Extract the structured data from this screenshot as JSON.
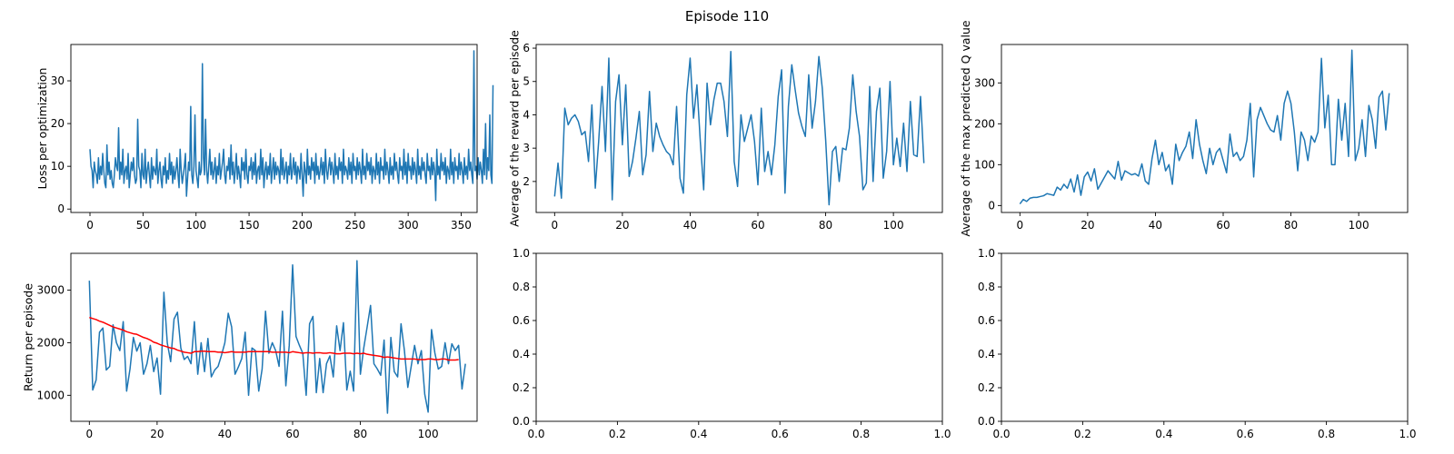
{
  "figure": {
    "suptitle": "Episode 110"
  },
  "colors": {
    "series": "#1f77b4",
    "moving_average": "#ff0000",
    "axes": "#000000",
    "background": "#ffffff"
  },
  "chart_data": [
    {
      "id": "loss",
      "type": "line",
      "title": "",
      "xlabel": "",
      "ylabel": "Loss per optimization",
      "xlim": [
        -18,
        365
      ],
      "ylim": [
        -0.8,
        38.5
      ],
      "xticks": [
        0,
        50,
        100,
        150,
        200,
        250,
        300,
        350
      ],
      "yticks": [
        0,
        10,
        20,
        30
      ],
      "grid": false,
      "series": [
        {
          "color": "#1f77b4",
          "x_start": 0,
          "x_step": 1,
          "values": [
            14,
            10,
            9,
            5,
            11,
            9,
            8,
            6,
            12,
            7,
            10,
            8,
            13,
            9,
            6,
            5,
            15,
            8,
            11,
            7,
            9,
            6,
            5,
            8,
            12,
            10,
            9,
            19,
            7,
            11,
            8,
            14,
            6,
            9,
            10,
            7,
            13,
            5,
            8,
            11,
            9,
            12,
            8,
            6,
            7,
            21,
            10,
            9,
            5,
            13,
            8,
            7,
            14,
            6,
            9,
            11,
            8,
            5,
            12,
            7,
            10,
            9,
            8,
            14,
            6,
            9,
            11,
            7,
            5,
            10,
            8,
            12,
            6,
            9,
            7,
            13,
            8,
            11,
            6,
            10,
            7,
            9,
            12,
            8,
            5,
            14,
            9,
            6,
            8,
            10,
            13,
            3,
            7,
            11,
            9,
            24,
            8,
            6,
            10,
            22,
            9,
            7,
            5,
            11,
            8,
            9,
            34,
            12,
            8,
            21,
            9,
            6,
            10,
            14,
            8,
            11,
            7,
            9,
            12,
            6,
            10,
            8,
            13,
            7,
            9,
            11,
            14,
            8,
            6,
            10,
            9,
            12,
            7,
            15,
            8,
            11,
            6,
            9,
            13,
            7,
            10,
            8,
            5,
            12,
            9,
            11,
            7,
            14,
            8,
            6,
            10,
            9,
            12,
            7,
            11,
            8,
            13,
            6,
            9,
            10,
            7,
            14,
            8,
            12,
            5,
            9,
            11,
            7,
            10,
            8,
            13,
            6,
            9,
            12,
            7,
            11,
            8,
            10,
            9,
            6,
            14,
            8,
            12,
            7,
            9,
            11,
            6,
            10,
            8,
            13,
            7,
            9,
            12,
            8,
            11,
            6,
            10,
            9,
            7,
            13,
            8,
            3,
            11,
            9,
            6,
            14,
            8,
            10,
            7,
            12,
            9,
            11,
            6,
            13,
            8,
            10,
            7,
            9,
            12,
            8,
            11,
            6,
            14,
            9,
            7,
            10,
            12,
            8,
            11,
            9,
            6,
            13,
            8,
            10,
            7,
            12,
            9,
            11,
            6,
            14,
            8,
            10,
            9,
            7,
            12,
            8,
            11,
            6,
            13,
            9,
            10,
            7,
            12,
            8,
            11,
            9,
            6,
            14,
            8,
            10,
            7,
            13,
            9,
            11,
            8,
            12,
            6,
            10,
            9,
            7,
            13,
            8,
            11,
            6,
            12,
            9,
            10,
            7,
            14,
            8,
            11,
            9,
            6,
            12,
            8,
            10,
            7,
            13,
            9,
            11,
            8,
            6,
            12,
            9,
            10,
            7,
            14,
            8,
            11,
            6,
            13,
            9,
            10,
            7,
            12,
            8,
            11,
            9,
            6,
            14,
            8,
            10,
            7,
            12,
            9,
            11,
            8,
            6,
            13,
            9,
            10,
            7,
            12,
            8,
            11,
            9,
            2,
            14,
            8,
            10,
            7,
            13,
            9,
            11,
            8,
            12,
            6,
            10,
            9,
            7,
            14,
            8,
            11,
            6,
            12,
            9,
            10,
            7,
            13,
            8,
            11,
            9,
            6,
            12,
            8,
            10,
            7,
            14,
            9,
            11,
            8,
            6,
            37,
            9,
            10,
            7,
            12,
            8,
            11,
            9,
            6,
            14,
            8,
            20,
            7,
            12,
            9,
            22,
            8,
            6,
            29
          ]
        }
      ]
    },
    {
      "id": "avg-reward",
      "type": "line",
      "title": "",
      "xlabel": "",
      "ylabel": "Average of the reward per episode",
      "xlim": [
        -5.45,
        114.45
      ],
      "ylim": [
        1.07,
        6.11
      ],
      "xticks": [
        0,
        20,
        40,
        60,
        80,
        100
      ],
      "yticks": [
        2,
        3,
        4,
        5,
        6
      ],
      "grid": false,
      "series": [
        {
          "color": "#1f77b4",
          "x_start": 0,
          "x_step": 1,
          "values": [
            1.55,
            2.55,
            1.5,
            4.2,
            3.7,
            3.9,
            4.0,
            3.8,
            3.4,
            3.5,
            2.6,
            4.3,
            1.8,
            3.2,
            4.85,
            2.9,
            5.7,
            1.45,
            4.4,
            5.2,
            3.1,
            4.9,
            2.15,
            2.6,
            3.3,
            4.1,
            2.2,
            2.8,
            4.7,
            2.9,
            3.75,
            3.35,
            3.1,
            2.9,
            2.8,
            2.5,
            4.25,
            2.1,
            1.65,
            4.6,
            5.7,
            3.9,
            4.9,
            3.2,
            1.75,
            4.95,
            3.7,
            4.45,
            4.95,
            4.95,
            4.4,
            3.35,
            5.9,
            2.6,
            1.85,
            4.0,
            3.2,
            3.6,
            4.0,
            3.2,
            1.9,
            4.2,
            2.3,
            2.9,
            2.2,
            3.1,
            4.55,
            5.35,
            1.65,
            4.25,
            5.5,
            4.75,
            4.05,
            3.65,
            3.35,
            5.2,
            3.6,
            4.4,
            5.75,
            4.8,
            3.25,
            1.3,
            2.9,
            3.05,
            2.0,
            3.0,
            2.95,
            3.6,
            5.2,
            4.1,
            3.35,
            1.75,
            1.95,
            4.85,
            2.0,
            4.1,
            4.8,
            2.1,
            2.9,
            5.0,
            2.5,
            3.3,
            2.45,
            3.75,
            2.3,
            4.4,
            2.8,
            2.75,
            4.55,
            2.55
          ]
        }
      ]
    },
    {
      "id": "max-q",
      "type": "line",
      "title": "",
      "xlabel": "",
      "ylabel": "Average of the max predicted Q value",
      "xlim": [
        -5.45,
        114.45
      ],
      "ylim": [
        -17,
        394
      ],
      "xticks": [
        0,
        20,
        40,
        60,
        80,
        100
      ],
      "yticks": [
        0,
        100,
        200,
        300
      ],
      "grid": false,
      "series": [
        {
          "color": "#1f77b4",
          "x_start": 0,
          "x_step": 1,
          "values": [
            4,
            15,
            10,
            18,
            20,
            20,
            22,
            24,
            29,
            27,
            25,
            45,
            38,
            52,
            42,
            65,
            33,
            75,
            25,
            70,
            82,
            60,
            90,
            40,
            55,
            70,
            85,
            75,
            65,
            108,
            62,
            85,
            80,
            75,
            78,
            72,
            102,
            60,
            52,
            115,
            160,
            100,
            130,
            85,
            100,
            52,
            150,
            110,
            130,
            145,
            180,
            115,
            210,
            150,
            110,
            78,
            140,
            100,
            130,
            140,
            110,
            80,
            175,
            120,
            130,
            110,
            120,
            160,
            250,
            70,
            210,
            240,
            220,
            200,
            185,
            180,
            220,
            160,
            250,
            280,
            250,
            180,
            85,
            180,
            160,
            110,
            170,
            155,
            180,
            360,
            190,
            270,
            100,
            100,
            260,
            160,
            250,
            120,
            380,
            110,
            140,
            210,
            120,
            245,
            210,
            140,
            265,
            280,
            185,
            275
          ]
        }
      ]
    },
    {
      "id": "return",
      "type": "line",
      "title": "",
      "xlabel": "",
      "ylabel": "Return per episode",
      "xlim": [
        -5.45,
        114.45
      ],
      "ylim": [
        505,
        3700
      ],
      "xticks": [
        0,
        20,
        40,
        60,
        80,
        100
      ],
      "yticks": [
        1000,
        2000,
        3000
      ],
      "grid": false,
      "series": [
        {
          "color": "#1f77b4",
          "x_start": 0,
          "x_step": 1,
          "values": [
            3180,
            1100,
            1290,
            2200,
            2280,
            1480,
            1550,
            2340,
            2000,
            1850,
            2400,
            1080,
            1500,
            2100,
            1840,
            2000,
            1400,
            1600,
            1950,
            1450,
            1710,
            1020,
            2960,
            2000,
            1640,
            2450,
            2580,
            1900,
            1680,
            1740,
            1600,
            2400,
            1400,
            2000,
            1450,
            2080,
            1350,
            1480,
            1550,
            1760,
            2000,
            2560,
            2300,
            1400,
            1540,
            1700,
            2200,
            1000,
            1900,
            1850,
            1080,
            1500,
            2600,
            1800,
            2000,
            1850,
            1550,
            2600,
            1180,
            1950,
            3480,
            2120,
            1950,
            1800,
            1000,
            2360,
            2500,
            1050,
            1700,
            1050,
            1600,
            1750,
            1350,
            2320,
            1850,
            2380,
            1100,
            1460,
            1080,
            3560,
            1400,
            1900,
            2300,
            2710,
            1600,
            1500,
            1380,
            2050,
            660,
            2100,
            1450,
            1350,
            2360,
            1850,
            1150,
            1550,
            1950,
            1600,
            1850,
            1020,
            680,
            2250,
            1800,
            1500,
            1550,
            2000,
            1600,
            1980,
            1850,
            1950,
            1120,
            1600
          ]
        },
        {
          "color": "#ff0000",
          "x_start": 0,
          "x_step": 1,
          "values": [
            2480,
            2460,
            2440,
            2410,
            2390,
            2360,
            2330,
            2300,
            2280,
            2260,
            2240,
            2210,
            2190,
            2170,
            2160,
            2130,
            2100,
            2080,
            2050,
            2010,
            1990,
            1960,
            1940,
            1920,
            1900,
            1890,
            1860,
            1840,
            1820,
            1810,
            1800,
            1830,
            1830,
            1840,
            1840,
            1830,
            1830,
            1830,
            1820,
            1820,
            1810,
            1820,
            1830,
            1820,
            1820,
            1820,
            1820,
            1830,
            1830,
            1830,
            1830,
            1830,
            1830,
            1830,
            1820,
            1820,
            1820,
            1820,
            1820,
            1810,
            1830,
            1820,
            1810,
            1800,
            1810,
            1810,
            1800,
            1810,
            1810,
            1800,
            1800,
            1810,
            1800,
            1790,
            1790,
            1800,
            1800,
            1800,
            1790,
            1800,
            1790,
            1800,
            1780,
            1770,
            1760,
            1750,
            1740,
            1720,
            1730,
            1720,
            1710,
            1700,
            1690,
            1690,
            1690,
            1690,
            1690,
            1680,
            1680,
            1680,
            1690,
            1690,
            1680,
            1680,
            1690,
            1690,
            1670,
            1670,
            1670,
            1680
          ]
        }
      ]
    },
    {
      "id": "empty-1",
      "type": "line",
      "title": "",
      "xlabel": "",
      "ylabel": "",
      "xlim": [
        0,
        1
      ],
      "ylim": [
        0,
        1
      ],
      "xticks": [
        "0.0",
        "0.2",
        "0.4",
        "0.6",
        "0.8",
        "1.0"
      ],
      "yticks": [
        "0.0",
        "0.2",
        "0.4",
        "0.6",
        "0.8",
        "1.0"
      ],
      "grid": false,
      "series": []
    },
    {
      "id": "empty-2",
      "type": "line",
      "title": "",
      "xlabel": "",
      "ylabel": "",
      "xlim": [
        0,
        1
      ],
      "ylim": [
        0,
        1
      ],
      "xticks": [
        "0.0",
        "0.2",
        "0.4",
        "0.6",
        "0.8",
        "1.0"
      ],
      "yticks": [
        "0.0",
        "0.2",
        "0.4",
        "0.6",
        "0.8",
        "1.0"
      ],
      "grid": false,
      "series": []
    }
  ]
}
